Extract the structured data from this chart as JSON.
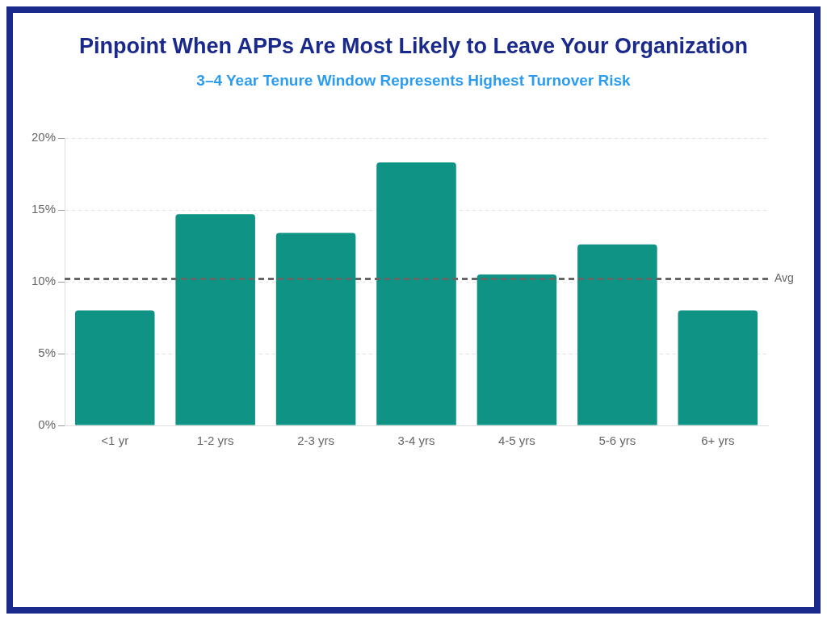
{
  "chart_data": {
    "type": "bar",
    "title": "Pinpoint When APPs Are Most Likely to Leave Your Organization",
    "subtitle": "3–4 Year Tenure Window Represents Highest Turnover Risk",
    "categories": [
      "<1 yr",
      "1-2 yrs",
      "2-3 yrs",
      "3-4 yrs",
      "4-5 yrs",
      "5-6 yrs",
      "6+ yrs"
    ],
    "values": [
      8.0,
      14.7,
      13.4,
      18.3,
      10.5,
      12.6,
      8.0
    ],
    "color": "#0e9384",
    "ylim": [
      0,
      20
    ],
    "yticks": [
      {
        "value": 0,
        "label": "0%"
      },
      {
        "value": 5,
        "label": "5%"
      },
      {
        "value": 10,
        "label": "10%"
      },
      {
        "value": 15,
        "label": "15%"
      },
      {
        "value": 20,
        "label": "20%"
      }
    ],
    "grid": "y",
    "ref_lines": [
      {
        "axis": "y",
        "value": 10.2,
        "label": "Avg",
        "color": "#666666",
        "line_style": "dashed"
      }
    ]
  }
}
